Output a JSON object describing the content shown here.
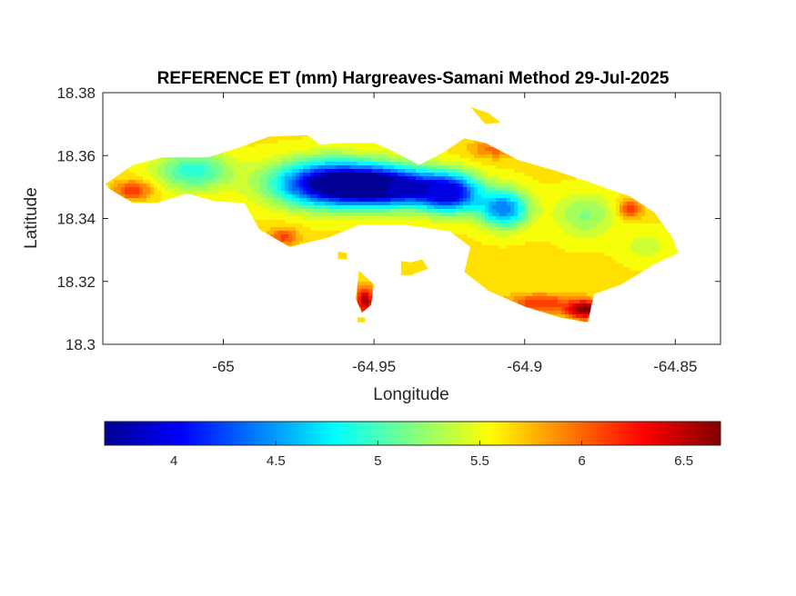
{
  "chart_data": {
    "type": "heatmap",
    "title": "REFERENCE ET (mm) Hargreaves-Samani Method  29-Jul-2025",
    "xlabel": "Longitude",
    "ylabel": "Latitude",
    "xlim": [
      -65.04,
      -64.835
    ],
    "ylim": [
      18.3,
      18.38
    ],
    "x_ticks": [
      -65,
      -64.95,
      -64.9,
      -64.85
    ],
    "x_tick_labels": [
      "-65",
      "-64.95",
      "-64.9",
      "-64.85"
    ],
    "y_ticks": [
      18.3,
      18.32,
      18.34,
      18.36,
      18.38
    ],
    "y_tick_labels": [
      "18.3",
      "18.32",
      "18.34",
      "18.36",
      "18.38"
    ],
    "colormap": "jet",
    "colorbar": {
      "location": "below",
      "range": [
        3.66,
        6.68
      ],
      "ticks": [
        4,
        4.5,
        5,
        5.5,
        6,
        6.5
      ],
      "tick_labels": [
        "4",
        "4.5",
        "5",
        "5.5",
        "6",
        "6.5"
      ]
    },
    "grid": false,
    "landmass": [
      [
        -65.039,
        18.351
      ],
      [
        -65.03,
        18.357
      ],
      [
        -65.02,
        18.3595
      ],
      [
        -65.005,
        18.3595
      ],
      [
        -64.995,
        18.3625
      ],
      [
        -64.985,
        18.366
      ],
      [
        -64.972,
        18.3665
      ],
      [
        -64.968,
        18.3635
      ],
      [
        -64.96,
        18.364
      ],
      [
        -64.95,
        18.364
      ],
      [
        -64.945,
        18.362
      ],
      [
        -64.935,
        18.357
      ],
      [
        -64.927,
        18.361
      ],
      [
        -64.92,
        18.3655
      ],
      [
        -64.913,
        18.364
      ],
      [
        -64.902,
        18.3585
      ],
      [
        -64.889,
        18.355
      ],
      [
        -64.88,
        18.352
      ],
      [
        -64.865,
        18.347
      ],
      [
        -64.857,
        18.342
      ],
      [
        -64.851,
        18.334
      ],
      [
        -64.849,
        18.329
      ],
      [
        -64.856,
        18.326
      ],
      [
        -64.868,
        18.319
      ],
      [
        -64.877,
        18.316
      ],
      [
        -64.879,
        18.307
      ],
      [
        -64.888,
        18.3085
      ],
      [
        -64.9,
        18.312
      ],
      [
        -64.912,
        18.317
      ],
      [
        -64.92,
        18.323
      ],
      [
        -64.918,
        18.331
      ],
      [
        -64.925,
        18.336
      ],
      [
        -64.94,
        18.338
      ],
      [
        -64.955,
        18.338
      ],
      [
        -64.965,
        18.334
      ],
      [
        -64.978,
        18.331
      ],
      [
        -64.988,
        18.3365
      ],
      [
        -64.993,
        18.345
      ],
      [
        -65.003,
        18.3455
      ],
      [
        -65.012,
        18.348
      ],
      [
        -65.022,
        18.345
      ],
      [
        -65.03,
        18.345
      ],
      [
        -65.038,
        18.3495
      ]
    ],
    "islets": [
      [
        [
          -64.941,
          18.3265
        ],
        [
          -64.937,
          18.326
        ],
        [
          -64.937,
          18.322
        ],
        [
          -64.941,
          18.322
        ]
      ],
      [
        [
          -64.955,
          18.3235
        ],
        [
          -64.95,
          18.319
        ],
        [
          -64.951,
          18.3125
        ],
        [
          -64.954,
          18.31
        ],
        [
          -64.956,
          18.3145
        ]
      ],
      [
        [
          -64.9555,
          18.3085
        ],
        [
          -64.953,
          18.3085
        ],
        [
          -64.953,
          18.307
        ],
        [
          -64.9555,
          18.307
        ]
      ],
      [
        [
          -64.94,
          18.3255
        ],
        [
          -64.934,
          18.327
        ],
        [
          -64.932,
          18.324
        ],
        [
          -64.938,
          18.322
        ]
      ],
      [
        [
          -64.918,
          18.3755
        ],
        [
          -64.912,
          18.3735
        ],
        [
          -64.908,
          18.3705
        ],
        [
          -64.913,
          18.37
        ]
      ],
      [
        [
          -64.962,
          18.3295
        ],
        [
          -64.959,
          18.329
        ],
        [
          -64.959,
          18.327
        ],
        [
          -64.962,
          18.327
        ]
      ]
    ],
    "value_field": {
      "background": 5.6,
      "peaks": [
        {
          "lon": -64.965,
          "lat": 18.351,
          "value": 3.7,
          "spread": [
            0.018,
            0.007
          ]
        },
        {
          "lon": -64.945,
          "lat": 18.35,
          "value": 3.8,
          "spread": [
            0.016,
            0.006
          ]
        },
        {
          "lon": -64.925,
          "lat": 18.348,
          "value": 4.0,
          "spread": [
            0.01,
            0.006
          ]
        },
        {
          "lon": -64.907,
          "lat": 18.343,
          "value": 4.4,
          "spread": [
            0.008,
            0.006
          ]
        },
        {
          "lon": -65.01,
          "lat": 18.355,
          "value": 4.9,
          "spread": [
            0.012,
            0.006
          ]
        },
        {
          "lon": -64.88,
          "lat": 18.341,
          "value": 5.2,
          "spread": [
            0.01,
            0.007
          ]
        },
        {
          "lon": -64.86,
          "lat": 18.331,
          "value": 5.4,
          "spread": [
            0.008,
            0.005
          ]
        },
        {
          "lon": -64.88,
          "lat": 18.311,
          "value": 6.7,
          "spread": [
            0.006,
            0.003
          ]
        },
        {
          "lon": -64.895,
          "lat": 18.313,
          "value": 6.2,
          "spread": [
            0.01,
            0.003
          ]
        },
        {
          "lon": -64.953,
          "lat": 18.314,
          "value": 6.6,
          "spread": [
            0.003,
            0.004
          ]
        },
        {
          "lon": -65.03,
          "lat": 18.349,
          "value": 6.2,
          "spread": [
            0.006,
            0.003
          ]
        },
        {
          "lon": -64.865,
          "lat": 18.343,
          "value": 6.2,
          "spread": [
            0.004,
            0.003
          ]
        },
        {
          "lon": -64.91,
          "lat": 18.362,
          "value": 6.0,
          "spread": [
            0.008,
            0.003
          ]
        },
        {
          "lon": -64.98,
          "lat": 18.334,
          "value": 6.1,
          "spread": [
            0.005,
            0.003
          ]
        }
      ]
    }
  }
}
